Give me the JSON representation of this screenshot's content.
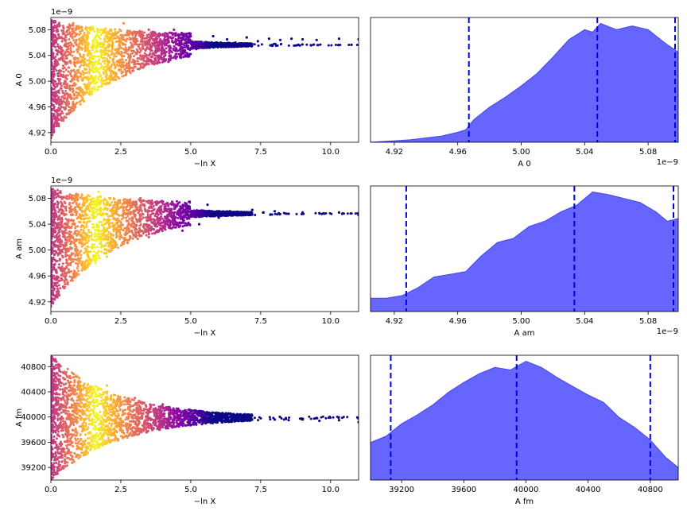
{
  "chart_data": [
    {
      "type": "scatter",
      "xlabel": "−ln X",
      "ylabel": "A 0",
      "offset_label": "1e−9",
      "xlim": [
        0,
        11.0
      ],
      "ylim": [
        4.905,
        5.099
      ],
      "xticks": [
        {
          "v": 0,
          "label": "0.0"
        },
        {
          "v": 2.5,
          "label": "2.5"
        },
        {
          "v": 5,
          "label": "5.0"
        },
        {
          "v": 7.5,
          "label": "7.5"
        },
        {
          "v": 10,
          "label": "10.0"
        }
      ],
      "yticks": [
        {
          "v": 4.92,
          "label": "4.92"
        },
        {
          "v": 4.96,
          "label": "4.96"
        },
        {
          "v": 5.0,
          "label": "5.00"
        },
        {
          "v": 5.04,
          "label": "5.04"
        },
        {
          "v": 5.08,
          "label": "5.08"
        }
      ],
      "colormap": "plasma",
      "points": [
        [
          0.0,
          4.912
        ],
        [
          0.1,
          4.925
        ],
        [
          0.2,
          4.94
        ],
        [
          0.3,
          4.955
        ],
        [
          0.4,
          4.965
        ],
        [
          0.6,
          4.975
        ],
        [
          0.8,
          4.985
        ],
        [
          1.0,
          4.99
        ],
        [
          1.2,
          4.995
        ],
        [
          1.5,
          5.0
        ],
        [
          0.3,
          5.0
        ],
        [
          0.5,
          5.03
        ],
        [
          0.7,
          5.06
        ],
        [
          0.8,
          5.09
        ],
        [
          1.0,
          5.05
        ],
        [
          1.3,
          5.07
        ],
        [
          1.5,
          5.02
        ],
        [
          1.8,
          5.08
        ],
        [
          2.0,
          5.01
        ],
        [
          2.2,
          5.05
        ],
        [
          2.5,
          5.03
        ],
        [
          2.6,
          5.09
        ],
        [
          2.8,
          5.02
        ],
        [
          3.0,
          5.06
        ],
        [
          3.2,
          5.04
        ],
        [
          3.5,
          5.08
        ],
        [
          3.6,
          5.03
        ],
        [
          3.8,
          5.07
        ],
        [
          4.0,
          5.05
        ],
        [
          4.2,
          5.03
        ],
        [
          4.4,
          5.08
        ],
        [
          4.6,
          5.06
        ],
        [
          4.8,
          5.04
        ],
        [
          5.0,
          5.07
        ],
        [
          5.2,
          5.05
        ],
        [
          5.5,
          5.06
        ],
        [
          5.8,
          5.07
        ],
        [
          6.0,
          5.055
        ],
        [
          6.3,
          5.065
        ],
        [
          6.6,
          5.06
        ],
        [
          7.0,
          5.068
        ],
        [
          7.4,
          5.062
        ],
        [
          7.8,
          5.066
        ],
        [
          8.2,
          5.064
        ],
        [
          8.6,
          5.066
        ],
        [
          9.0,
          5.065
        ],
        [
          9.5,
          5.064
        ],
        [
          10.3,
          5.066
        ],
        [
          11.0,
          5.065
        ]
      ],
      "series": [
        {
          "name": "",
          "values": []
        }
      ]
    },
    {
      "type": "area",
      "xlabel": "A 0",
      "offset_label": "1e−9",
      "xlim": [
        4.905,
        5.099
      ],
      "xticks": [
        {
          "v": 4.92,
          "label": "4.92"
        },
        {
          "v": 4.96,
          "label": "4.96"
        },
        {
          "v": 5.0,
          "label": "5.00"
        },
        {
          "v": 5.04,
          "label": "5.04"
        },
        {
          "v": 5.08,
          "label": "5.08"
        }
      ],
      "x": [
        4.905,
        4.93,
        4.95,
        4.96,
        4.965,
        4.97,
        4.98,
        4.99,
        5.0,
        5.01,
        5.02,
        5.03,
        5.04,
        5.045,
        5.05,
        5.06,
        5.07,
        5.08,
        5.09,
        5.099
      ],
      "density": [
        0.0,
        0.02,
        0.05,
        0.08,
        0.1,
        0.18,
        0.28,
        0.36,
        0.45,
        0.55,
        0.68,
        0.82,
        0.9,
        0.88,
        0.95,
        0.9,
        0.93,
        0.9,
        0.8,
        0.72
      ],
      "quantile_lines": [
        4.967,
        5.048,
        5.097
      ],
      "fill_color": "#6666ff",
      "line_color": "#0000dd"
    },
    {
      "type": "scatter",
      "xlabel": "−ln X",
      "ylabel": "A am",
      "offset_label": "1e−9",
      "xlim": [
        0,
        11.0
      ],
      "ylim": [
        4.905,
        5.099
      ],
      "xticks": [
        {
          "v": 0,
          "label": "0.0"
        },
        {
          "v": 2.5,
          "label": "2.5"
        },
        {
          "v": 5,
          "label": "5.0"
        },
        {
          "v": 7.5,
          "label": "7.5"
        },
        {
          "v": 10,
          "label": "10.0"
        }
      ],
      "yticks": [
        {
          "v": 4.92,
          "label": "4.92"
        },
        {
          "v": 4.96,
          "label": "4.96"
        },
        {
          "v": 5.0,
          "label": "5.00"
        },
        {
          "v": 5.04,
          "label": "5.04"
        },
        {
          "v": 5.08,
          "label": "5.08"
        }
      ],
      "colormap": "plasma",
      "points": [
        [
          0.0,
          4.92
        ],
        [
          0.3,
          4.93
        ],
        [
          0.6,
          4.95
        ],
        [
          0.9,
          4.96
        ],
        [
          1.2,
          4.97
        ],
        [
          1.6,
          4.98
        ],
        [
          2.0,
          4.99
        ],
        [
          0.4,
          5.0
        ],
        [
          0.6,
          5.04
        ],
        [
          0.8,
          5.08
        ],
        [
          1.1,
          5.02
        ],
        [
          1.4,
          5.06
        ],
        [
          1.7,
          5.09
        ],
        [
          2.0,
          5.03
        ],
        [
          2.3,
          5.07
        ],
        [
          2.6,
          5.01
        ],
        [
          2.9,
          5.05
        ],
        [
          3.2,
          5.08
        ],
        [
          3.5,
          5.02
        ],
        [
          3.8,
          5.06
        ],
        [
          4.1,
          5.04
        ],
        [
          4.4,
          5.07
        ],
        [
          4.7,
          5.03
        ],
        [
          5.0,
          5.06
        ],
        [
          5.3,
          5.04
        ],
        [
          5.6,
          5.07
        ],
        [
          6.0,
          5.05
        ],
        [
          6.4,
          5.06
        ],
        [
          6.8,
          5.055
        ],
        [
          7.2,
          5.062
        ],
        [
          7.6,
          5.058
        ],
        [
          8.0,
          5.06
        ],
        [
          8.5,
          5.056
        ],
        [
          9.0,
          5.058
        ],
        [
          9.6,
          5.057
        ],
        [
          10.3,
          5.058
        ],
        [
          11.0,
          5.054
        ]
      ]
    },
    {
      "type": "area",
      "xlabel": "A am",
      "offset_label": "1e−9",
      "xlim": [
        4.905,
        5.099
      ],
      "xticks": [
        {
          "v": 4.92,
          "label": "4.92"
        },
        {
          "v": 4.96,
          "label": "4.96"
        },
        {
          "v": 5.0,
          "label": "5.00"
        },
        {
          "v": 5.04,
          "label": "5.04"
        },
        {
          "v": 5.08,
          "label": "5.08"
        }
      ],
      "x": [
        4.905,
        4.915,
        4.925,
        4.935,
        4.945,
        4.955,
        4.965,
        4.975,
        4.985,
        4.995,
        5.005,
        5.015,
        5.025,
        5.035,
        5.045,
        5.055,
        5.065,
        5.075,
        5.085,
        5.092,
        5.099
      ],
      "density": [
        0.1,
        0.1,
        0.12,
        0.18,
        0.26,
        0.28,
        0.3,
        0.42,
        0.52,
        0.55,
        0.64,
        0.68,
        0.75,
        0.8,
        0.9,
        0.88,
        0.85,
        0.82,
        0.75,
        0.68,
        0.7
      ],
      "quantile_lines": [
        4.9275,
        5.0335,
        5.096
      ],
      "fill_color": "#6666ff",
      "line_color": "#0000dd"
    },
    {
      "type": "scatter",
      "xlabel": "−ln X",
      "ylabel": "A fm",
      "xlim": [
        0,
        11.0
      ],
      "ylim": [
        39000,
        40980
      ],
      "xticks": [
        {
          "v": 0,
          "label": "0.0"
        },
        {
          "v": 2.5,
          "label": "2.5"
        },
        {
          "v": 5,
          "label": "5.0"
        },
        {
          "v": 7.5,
          "label": "7.5"
        },
        {
          "v": 10,
          "label": "10.0"
        }
      ],
      "yticks": [
        {
          "v": 39200,
          "label": "39200"
        },
        {
          "v": 39600,
          "label": "39600"
        },
        {
          "v": 40000,
          "label": "40000"
        },
        {
          "v": 40400,
          "label": "40400"
        },
        {
          "v": 40800,
          "label": "40800"
        }
      ],
      "colormap": "plasma",
      "points": [
        [
          0.0,
          39100
        ],
        [
          0.5,
          39300
        ],
        [
          1.0,
          39500
        ],
        [
          1.5,
          39700
        ],
        [
          2.0,
          39850
        ],
        [
          2.5,
          39900
        ],
        [
          0.5,
          40600
        ],
        [
          1.0,
          40300
        ],
        [
          1.5,
          40100
        ],
        [
          2.0,
          40500
        ],
        [
          2.5,
          40200
        ],
        [
          3.0,
          40300
        ],
        [
          3.5,
          40100
        ],
        [
          4.0,
          40200
        ],
        [
          4.5,
          40050
        ],
        [
          5.0,
          40100
        ],
        [
          5.5,
          40000
        ],
        [
          6.0,
          40050
        ],
        [
          6.5,
          39950
        ],
        [
          7.0,
          40000
        ],
        [
          7.5,
          39980
        ],
        [
          8.0,
          39960
        ],
        [
          8.5,
          39950
        ],
        [
          9.0,
          39960
        ],
        [
          9.6,
          39940
        ],
        [
          10.3,
          39950
        ],
        [
          11.0,
          39920
        ]
      ]
    },
    {
      "type": "area",
      "xlabel": "A fm",
      "xlim": [
        39000,
        40980
      ],
      "xticks": [
        {
          "v": 39200,
          "label": "39200"
        },
        {
          "v": 39600,
          "label": "39600"
        },
        {
          "v": 40000,
          "label": "40000"
        },
        {
          "v": 40400,
          "label": "40400"
        },
        {
          "v": 40800,
          "label": "40800"
        }
      ],
      "x": [
        39000,
        39100,
        39200,
        39300,
        39400,
        39500,
        39600,
        39700,
        39800,
        39900,
        40000,
        40100,
        40200,
        40300,
        40400,
        40500,
        40600,
        40700,
        40800,
        40900,
        40980
      ],
      "density": [
        0.3,
        0.35,
        0.45,
        0.52,
        0.6,
        0.7,
        0.78,
        0.85,
        0.9,
        0.88,
        0.95,
        0.9,
        0.82,
        0.75,
        0.68,
        0.62,
        0.5,
        0.42,
        0.32,
        0.18,
        0.1
      ],
      "quantile_lines": [
        39130,
        39940,
        40800
      ],
      "fill_color": "#6666ff",
      "line_color": "#0000dd"
    }
  ]
}
